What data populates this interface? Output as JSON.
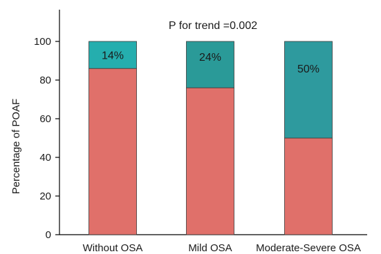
{
  "chart_data": {
    "type": "bar",
    "stacked": true,
    "categories": [
      "Without OSA",
      "Mild OSA",
      "Moderate-Severe OSA"
    ],
    "series": [
      {
        "values": [
          86,
          76,
          50
        ],
        "color": "#e0706a"
      },
      {
        "values": [
          14,
          24,
          50
        ],
        "color": "#2a9d9a",
        "labels": [
          "14%",
          "24%",
          "50%"
        ]
      }
    ],
    "series_colors_by_category": [
      "#25aeae",
      "#2a9a98",
      "#2e9a9e"
    ],
    "title": "",
    "annotation": "P for trend =0.002",
    "xlabel": "",
    "ylabel": "Percentage of POAF",
    "ylim": [
      0,
      100
    ],
    "yticks": [
      0,
      20,
      40,
      60,
      80,
      100
    ],
    "grid": false
  }
}
